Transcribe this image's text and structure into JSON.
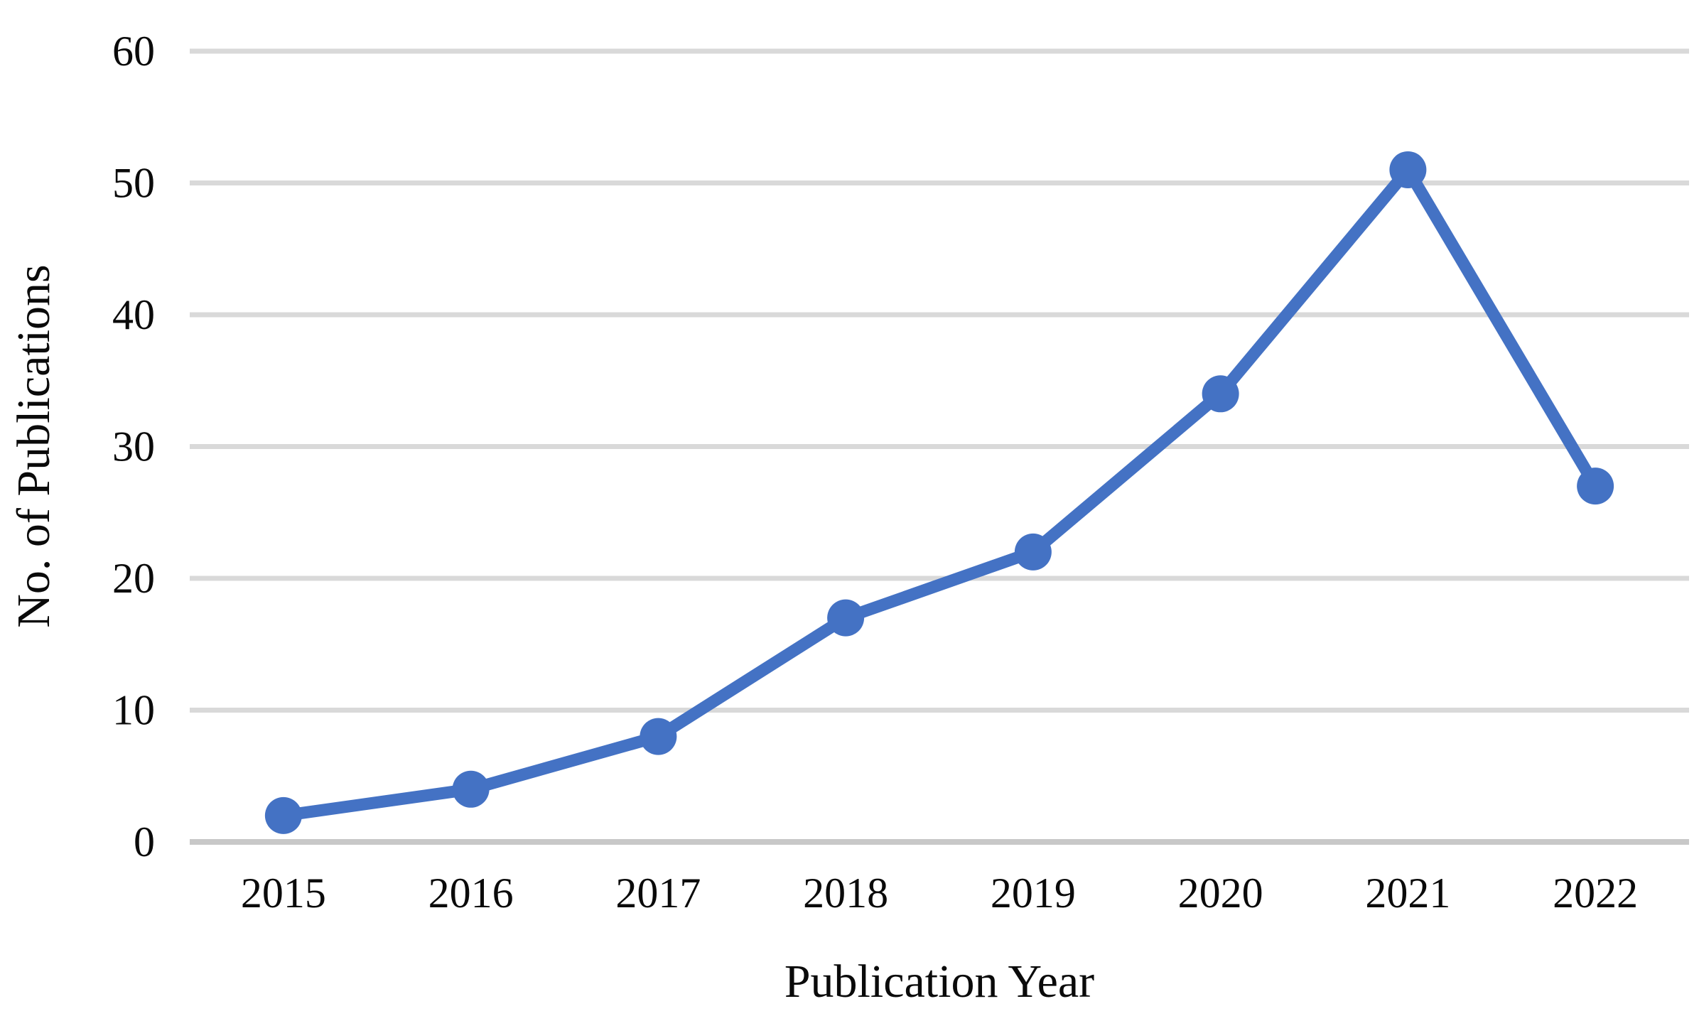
{
  "chart_data": {
    "type": "line",
    "title": "",
    "categories": [
      "2015",
      "2016",
      "2017",
      "2018",
      "2019",
      "2020",
      "2021",
      "2022"
    ],
    "series": [
      {
        "name": "No. of Publications",
        "values": [
          2,
          4,
          8,
          17,
          22,
          34,
          51,
          27
        ]
      }
    ],
    "xlabel": "Publication Year",
    "ylabel": "No. of Publications",
    "ylim": [
      0,
      60
    ],
    "yticks": [
      0,
      10,
      20,
      30,
      40,
      50,
      60
    ],
    "grid": "horizontal-only",
    "legend": "none",
    "marker": "circle",
    "colors": {
      "line": "#4472C4",
      "marker": "#4472C4",
      "gridline": "#D9D9D9",
      "axis_line": "#C8C8C8",
      "text": "#0a0a0a",
      "background": "#ffffff"
    }
  }
}
